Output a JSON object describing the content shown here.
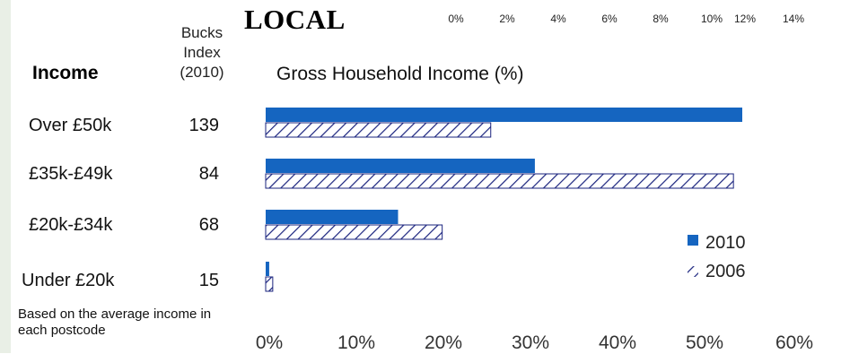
{
  "brand": "LOCAL",
  "top_axis_ticks": [
    "0%",
    "2%",
    "4%",
    "6%",
    "8%",
    "10%",
    "12%",
    "14%"
  ],
  "column_header": {
    "line1": "Bucks",
    "line2": "Index",
    "line3": "(2010)"
  },
  "income_header": "Income",
  "footnote": "Based on the average income in each postcode",
  "colors": {
    "series_2010": "#1565c0",
    "series_2006_stroke": "#1a237e"
  },
  "chart_data": {
    "type": "bar",
    "orientation": "horizontal",
    "title": "Gross Household Income (%)",
    "categories": [
      "Over £50k",
      "£35k-£49k",
      "£20k-£34k",
      "Under £20k"
    ],
    "bucks_index_2010": [
      "139",
      "84",
      "68",
      "15"
    ],
    "series": [
      {
        "name": "2010",
        "values": [
          54,
          30.5,
          15,
          0.4
        ]
      },
      {
        "name": "2006",
        "values": [
          25.5,
          53,
          20,
          0.8
        ]
      }
    ],
    "xlim": [
      0,
      60
    ],
    "x_ticks": [
      "0%",
      "10%",
      "20%",
      "30%",
      "40%",
      "50%",
      "60%"
    ],
    "legend_position": "bottom-right",
    "grid": false
  }
}
